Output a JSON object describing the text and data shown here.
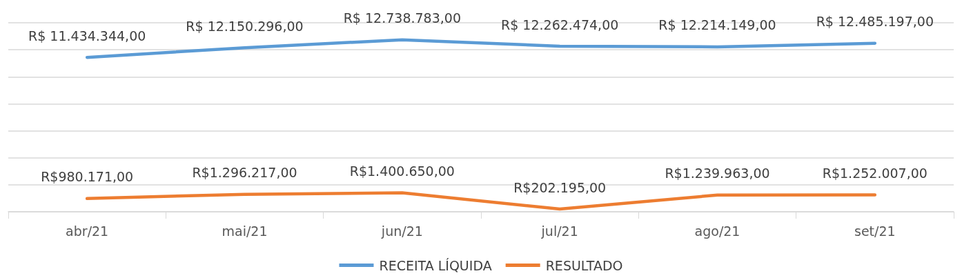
{
  "chart_data": {
    "type": "line",
    "categories": [
      "abr/21",
      "mai/21",
      "jun/21",
      "jul/21",
      "ago/21",
      "set/21"
    ],
    "series": [
      {
        "name": "RECEITA LÍQUIDA",
        "color": "#5b9bd5",
        "values": [
          11434344,
          12150296,
          12738783,
          12262474,
          12214149,
          12485197
        ],
        "value_labels": [
          "R$ 11.434.344,00",
          "R$ 12.150.296,00",
          "R$ 12.738.783,00",
          "R$ 12.262.474,00",
          "R$ 12.214.149,00",
          "R$ 12.485.197,00"
        ]
      },
      {
        "name": "RESULTADO",
        "color": "#ed7d31",
        "values": [
          980171,
          1296217,
          1400650,
          202195,
          1239963,
          1252007
        ],
        "value_labels": [
          "R$980.171,00",
          "R$1.296.217,00",
          "R$1.400.650,00",
          "R$202.195,00",
          "R$1.239.963,00",
          "R$1.252.007,00"
        ]
      }
    ],
    "ylim": [
      0,
      14000000
    ],
    "yticks": [
      {
        "value": 0,
        "label": null
      },
      {
        "value": 2000000,
        "label": null
      },
      {
        "value": 4000000,
        "label": null
      },
      {
        "value": 6000000,
        "label": null
      },
      {
        "value": 8000000,
        "label": null
      },
      {
        "value": 10000000,
        "label": null
      },
      {
        "value": 12000000,
        "label": null
      },
      {
        "value": 14000000,
        "label": null
      }
    ],
    "grid": "y",
    "legend": "bottom",
    "marker": "none",
    "tick_labels": "x"
  }
}
